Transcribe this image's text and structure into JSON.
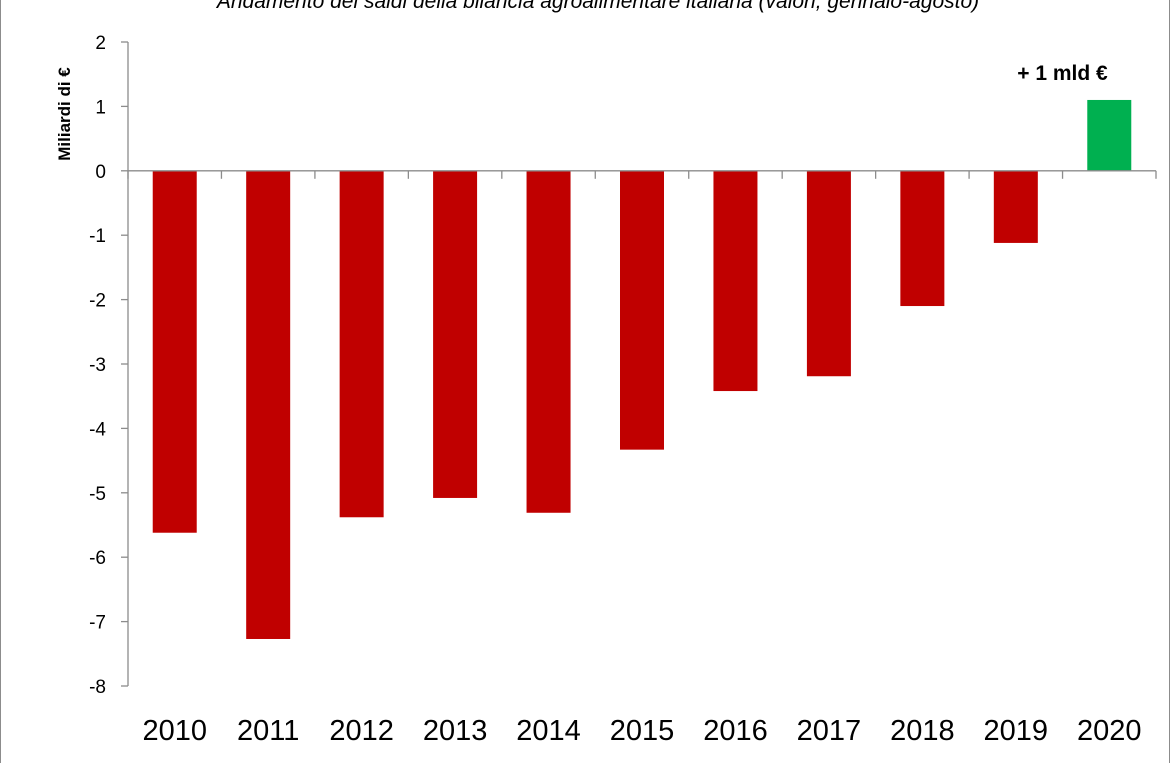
{
  "chart_data": {
    "type": "bar",
    "title": "Andamento dei saldi della bilancia agroalimentare italiana (valori, gennaio-agosto)",
    "ylabel": "Miliardi di €",
    "xlabel": "",
    "ylim": [
      -8,
      2
    ],
    "yticks": [
      "2",
      "1",
      "0",
      "-1",
      "-2",
      "-3",
      "-4",
      "-5",
      "-6",
      "-7",
      "-8"
    ],
    "categories": [
      "2010",
      "2011",
      "2012",
      "2013",
      "2014",
      "2015",
      "2016",
      "2017",
      "2018",
      "2019",
      "2020"
    ],
    "values": [
      -5.62,
      -7.27,
      -5.38,
      -5.08,
      -5.31,
      -4.33,
      -3.42,
      -3.19,
      -2.1,
      -1.12,
      1.1
    ],
    "annotation": "+ 1 mld €",
    "grid": false,
    "colors": {
      "negative": "#c00000",
      "positive": "#00b050",
      "axis": "#8c8c8c",
      "text": "#000000"
    }
  }
}
